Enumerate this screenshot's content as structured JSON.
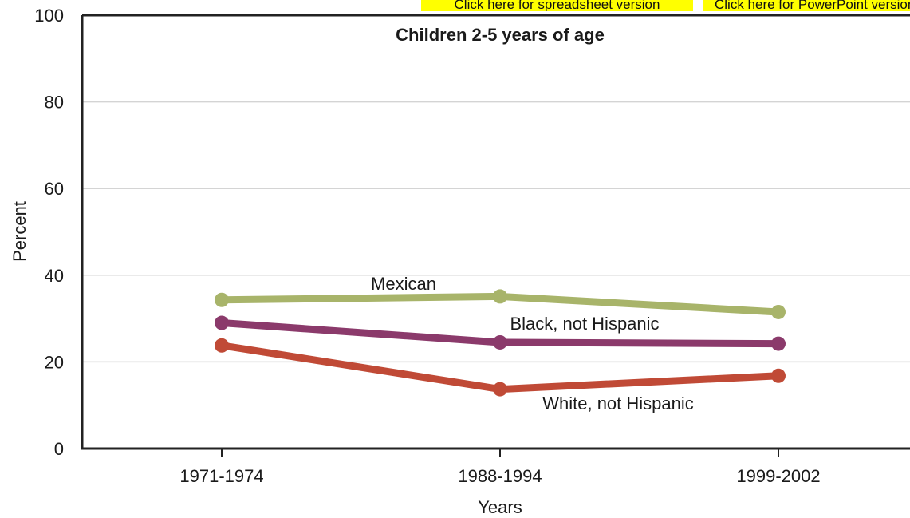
{
  "links": {
    "spreadsheet": "Click here for spreadsheet version",
    "powerpoint": "Click here for PowerPoint version"
  },
  "chart_data": {
    "type": "line",
    "title": "Children 2-5 years of age",
    "xlabel": "Years",
    "ylabel": "Percent",
    "categories": [
      "1971-1974",
      "1988-1994",
      "1999-2002"
    ],
    "ylim": [
      0,
      100
    ],
    "yticks": [
      0,
      20,
      40,
      60,
      80,
      100
    ],
    "grid": true,
    "legend": "inline labels",
    "series": [
      {
        "name": "Mexican",
        "values": [
          34.3,
          35.1,
          31.5
        ],
        "color": "#a8b46a"
      },
      {
        "name": "Black, not Hispanic",
        "values": [
          29.0,
          24.5,
          24.2
        ],
        "color": "#8b3a6b"
      },
      {
        "name": "White, not Hispanic",
        "values": [
          23.8,
          13.7,
          16.8
        ],
        "color": "#c04a36"
      }
    ]
  }
}
